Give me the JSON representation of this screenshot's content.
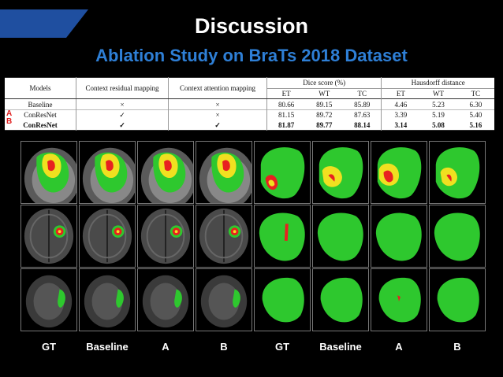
{
  "slide": {
    "title": "Discussion",
    "subtitle": "Ablation Study on BraTs 2018 Dataset",
    "colors": {
      "title": "#ffffff",
      "subtitle": "#2e7fd6",
      "stripe": "#1f4fa0",
      "marker": "#e02020"
    }
  },
  "table": {
    "headers": {
      "models": "Models",
      "context_residual": "Context residual mapping",
      "context_attention": "Context attention mapping",
      "dice": "Dice score (%)",
      "hausdorff": "Hausdorff distance",
      "sub": [
        "ET",
        "WT",
        "TC",
        "ET",
        "WT",
        "TC"
      ]
    },
    "rows": [
      {
        "marker": "",
        "model": "Baseline",
        "residual": "×",
        "attention": "×",
        "values": [
          "80.66",
          "89.15",
          "85.89",
          "4.46",
          "5.23",
          "6.30"
        ]
      },
      {
        "marker": "A",
        "model": "ConResNet",
        "residual": "✓",
        "attention": "×",
        "values": [
          "81.15",
          "89.72",
          "87.63",
          "3.39",
          "5.19",
          "5.40"
        ]
      },
      {
        "marker": "B",
        "model": "ConResNet",
        "residual": "✓",
        "attention": "✓",
        "values": [
          "81.87",
          "89.77",
          "88.14",
          "3.14",
          "5.08",
          "5.16"
        ]
      }
    ]
  },
  "figure": {
    "column_labels": [
      "GT",
      "Baseline",
      "A",
      "B",
      "GT",
      "Baseline",
      "A",
      "B"
    ],
    "legend_colors": {
      "edema": "#2ec82e",
      "enhancing": "#e82020",
      "core": "#f0e020"
    }
  }
}
